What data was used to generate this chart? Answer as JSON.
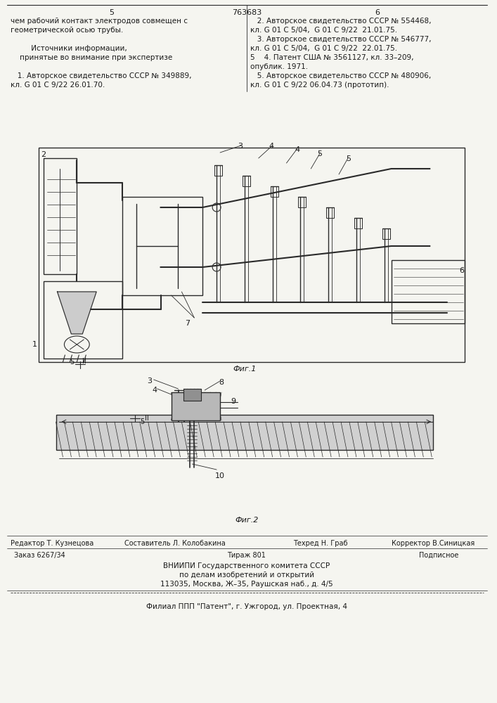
{
  "title_num": "763683",
  "page_left": "5",
  "page_right": "6",
  "bg_color": "#f5f5f0",
  "text_color": "#1a1a1a",
  "left_col_text": [
    "чем рабочий контакт электродов совмещен с",
    "геометрической осью трубы.",
    "",
    "         Источники информации,",
    "    принятые во внимание при экспертизе",
    "",
    "   1. Авторское свидетельство СССР № 349889,",
    "кл. G 01 С 9/22 26.01.70."
  ],
  "right_col_text": [
    "   2. Авторское свидетельство СССР № 554468,",
    "кл. G 01 С 5/04,  G 01 С 9/22  21.01.75.",
    "   3. Авторское свидетельство СССР № 546777,",
    "кл. G 01 С 5/04,  G 01 С 9/22  22.01.75.",
    "5    4. Патент США № 3561127, кл. 33–209,",
    "опублик. 1971.",
    "   5. Авторское свидетельство СССР № 480906,",
    "кл. G 01 С 9/22 06.04.73 (прототип)."
  ],
  "fig1_label": "Фиг.1",
  "fig2_label": "Фиг.2",
  "bottom_editor": "Редактор Т. Кузнецова",
  "bottom_composer": "Составитель Л. Колобакина",
  "bottom_tech": "Техред Н. Граб",
  "bottom_corrector": "Корректор В.Синицкая",
  "bottom_order": "Заказ 6267/34",
  "bottom_tirazh": "Тираж 801",
  "bottom_podpis": "Подписное",
  "bottom_vniipи": "ВНИИПИ Государственного комитета СССР",
  "bottom_vniipи2": "по делам изобретений и открытий",
  "bottom_address": "113035, Москва, Ж–35, Раушская наб., д. 4/5",
  "bottom_filial": "Филиал ППП \"Патент\", г. Ужгород, ул. Проектная, 4",
  "line_color": "#2a2a2a",
  "hatch_color": "#555555"
}
